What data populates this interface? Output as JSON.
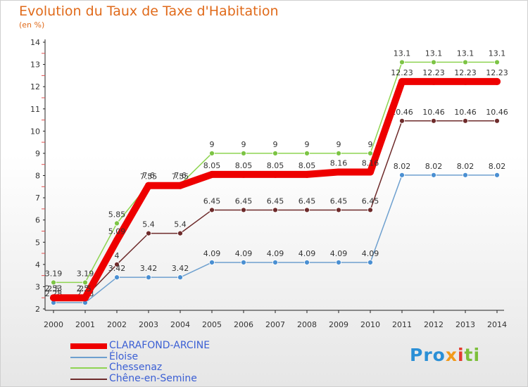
{
  "title": "Evolution du Taux de Taxe d'Habitation",
  "subtitle": "(en %)",
  "logo": {
    "p1": "Pro",
    "p2": "x",
    "p3": "i",
    "p4": "ti"
  },
  "chart_data": {
    "type": "line",
    "title": "Evolution du Taux de Taxe d'Habitation",
    "ylabel": "(en %)",
    "xlabel": "",
    "ylim": [
      2,
      14
    ],
    "yticks": [
      2,
      3,
      4,
      5,
      6,
      7,
      8,
      9,
      10,
      11,
      12,
      13,
      14
    ],
    "grid": false,
    "legend_position": "bottom-left",
    "x": [
      "2000",
      "2001",
      "2002",
      "2003",
      "2004",
      "2005",
      "2006",
      "2007",
      "2008",
      "2009",
      "2010",
      "2011",
      "2012",
      "2013",
      "2014"
    ],
    "series": [
      {
        "name": "Chessenaz",
        "color": "#8ed452",
        "marker": "#7cc444",
        "values": [
          3.19,
          3.19,
          5.85,
          7.6,
          7.6,
          9,
          9,
          9,
          9,
          9,
          9,
          13.1,
          13.1,
          13.1,
          13.1
        ],
        "labels": [
          "3.19",
          "3.19",
          "5.85",
          "7.6",
          "7.6",
          "9",
          "9",
          "9",
          "9",
          "9",
          "9",
          "13.1",
          "13.1",
          "13.1",
          "13.1"
        ]
      },
      {
        "name": "Chêne-en-Semine",
        "color": "#6e2b2b",
        "marker": "#6e2b2b",
        "values": [
          2.53,
          2.53,
          4,
          5.4,
          5.4,
          6.45,
          6.45,
          6.45,
          6.45,
          6.45,
          6.45,
          10.46,
          10.46,
          10.46,
          10.46
        ],
        "labels": [
          "2.53",
          "2.53",
          "4",
          "5.4",
          "5.4",
          "6.45",
          "6.45",
          "6.45",
          "6.45",
          "6.45",
          "6.45",
          "10.46",
          "10.46",
          "10.46",
          "10.46"
        ]
      },
      {
        "name": "Éloise",
        "color": "#6ea0cf",
        "marker": "#4a8fd2",
        "values": [
          2.28,
          2.28,
          3.42,
          3.42,
          3.42,
          4.09,
          4.09,
          4.09,
          4.09,
          4.09,
          4.09,
          8.02,
          8.02,
          8.02,
          8.02
        ],
        "labels": [
          "2.28",
          "2.28",
          "3.42",
          "3.42",
          "3.42",
          "4.09",
          "4.09",
          "4.09",
          "4.09",
          "4.09",
          "4.09",
          "8.02",
          "8.02",
          "8.02",
          "8.02"
        ]
      },
      {
        "name": "CLARAFOND-ARCINE",
        "color": "#ee0000",
        "marker": "#ee0000",
        "thick": true,
        "values": [
          2.5,
          2.5,
          5.09,
          7.55,
          7.55,
          8.05,
          8.05,
          8.05,
          8.05,
          8.16,
          8.16,
          12.23,
          12.23,
          12.23,
          12.23
        ],
        "labels": [
          "2.5",
          "2.5",
          "5.09",
          "7.55",
          "7.55",
          "8.05",
          "8.05",
          "8.05",
          "8.05",
          "8.16",
          "8.16",
          "12.23",
          "12.23",
          "12.23",
          "12.23"
        ]
      }
    ]
  },
  "legend": [
    {
      "name": "CLARAFOND-ARCINE",
      "color": "#ee0000",
      "thick": true
    },
    {
      "name": "Éloise",
      "color": "#6ea0cf",
      "thick": false
    },
    {
      "name": "Chessenaz",
      "color": "#8ed452",
      "thick": false
    },
    {
      "name": "Chêne-en-Semine",
      "color": "#6e2b2b",
      "thick": false
    }
  ]
}
